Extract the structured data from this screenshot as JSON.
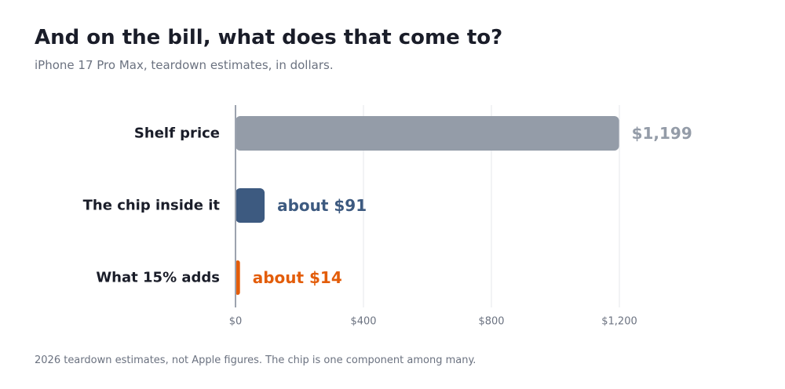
{
  "page": {
    "title": "And on the bill, what does that come to?",
    "subtitle": "iPhone 17 Pro Max, teardown estimates, in dollars.",
    "footnote": "2026 teardown estimates, not Apple figures. The chip is one component among many."
  },
  "chart_data": {
    "type": "bar",
    "orientation": "horizontal",
    "categories": [
      "Shelf price",
      "The chip inside it",
      "What 15% adds"
    ],
    "values": [
      1199,
      91,
      14
    ],
    "value_labels": [
      "$1,199",
      "about $91",
      "about $14"
    ],
    "colors": [
      "#949ca8",
      "#3d5a80",
      "#e35d0a"
    ],
    "xlim": [
      0,
      1500
    ],
    "x_ticks": [
      0,
      400,
      800,
      1200
    ],
    "x_tick_labels": [
      "$0",
      "$400",
      "$800",
      "$1,200"
    ],
    "grid": true,
    "legend": "none"
  }
}
